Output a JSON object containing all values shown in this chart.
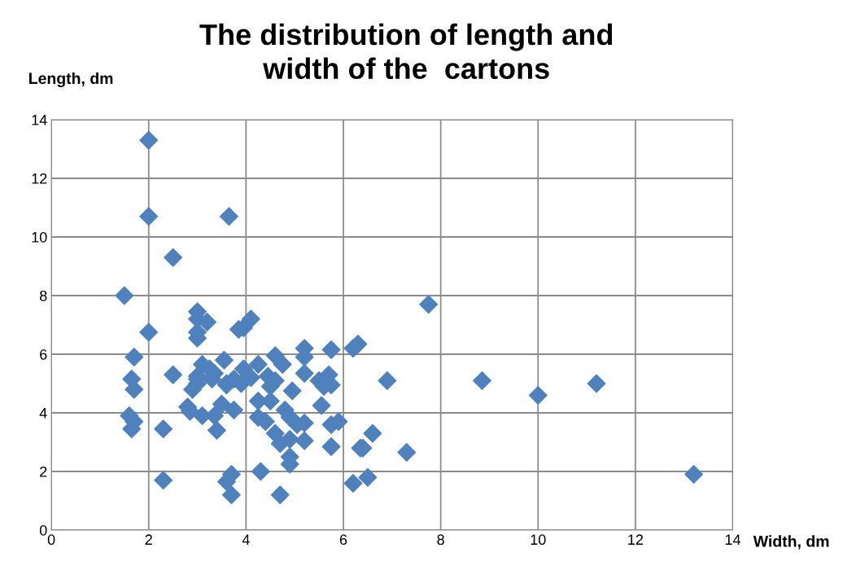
{
  "chart_data": {
    "type": "scatter",
    "title": "The distribution of length and\nwidth of the  cartons",
    "xlabel": "Width, dm",
    "ylabel": "Length, dm",
    "marker": "diamond",
    "grid": true,
    "legend": false,
    "xlim": [
      0,
      14
    ],
    "ylim": [
      0,
      14
    ],
    "xticks": [
      0,
      2,
      4,
      6,
      8,
      10,
      12,
      14
    ],
    "yticks": [
      0,
      2,
      4,
      6,
      8,
      10,
      12,
      14
    ],
    "series": [
      {
        "color": "#4f81bd",
        "x": [
          2.0,
          2.0,
          2.5,
          1.5,
          3.65,
          2.0,
          7.75,
          1.7,
          1.65,
          1.7,
          1.6,
          1.7,
          1.65,
          2.3,
          2.3,
          2.5,
          3.0,
          3.0,
          3.2,
          3.0,
          3.0,
          3.0,
          3.0,
          2.9,
          2.8,
          2.85,
          3.1,
          3.1,
          3.25,
          3.35,
          3.3,
          3.55,
          3.6,
          3.5,
          3.4,
          3.35,
          3.75,
          3.6,
          3.7,
          3.7,
          4.1,
          3.95,
          4.6,
          4.75,
          4.25,
          3.95,
          3.9,
          4.1,
          4.45,
          4.6,
          4.5,
          5.2,
          5.2,
          5.75,
          6.2,
          6.3,
          5.2,
          5.5,
          5.7,
          5.75,
          5.6,
          4.95,
          4.25,
          4.5,
          5.55,
          4.25,
          4.4,
          4.8,
          4.9,
          5.05,
          5.2,
          4.6,
          4.7,
          4.9,
          5.2,
          4.9,
          4.9,
          5.75,
          5.9,
          5.75,
          6.35,
          4.3,
          4.7,
          6.2,
          6.9,
          8.85,
          6.6,
          6.4,
          7.3,
          6.5,
          10.0,
          11.2,
          13.2,
          3.75,
          3.6,
          3.0,
          3.85
        ],
        "values": [
          13.3,
          10.7,
          9.3,
          8.0,
          10.7,
          6.75,
          7.7,
          5.9,
          5.15,
          4.8,
          3.9,
          3.7,
          3.45,
          3.45,
          1.7,
          5.3,
          7.45,
          7.2,
          7.1,
          6.75,
          6.55,
          5.25,
          5.0,
          4.8,
          4.2,
          4.05,
          3.9,
          5.65,
          5.5,
          5.35,
          5.15,
          5.8,
          5.0,
          4.3,
          3.4,
          3.9,
          4.1,
          1.65,
          1.9,
          1.2,
          7.2,
          6.9,
          5.95,
          5.65,
          5.65,
          5.5,
          5.0,
          5.2,
          5.25,
          5.1,
          4.9,
          6.2,
          5.9,
          6.15,
          6.2,
          6.35,
          5.35,
          5.1,
          5.3,
          4.95,
          4.9,
          4.75,
          4.4,
          4.4,
          4.25,
          3.85,
          3.7,
          4.1,
          3.85,
          3.6,
          3.65,
          3.3,
          2.95,
          3.1,
          3.05,
          2.5,
          2.25,
          3.6,
          3.7,
          2.85,
          2.8,
          2.0,
          1.2,
          1.6,
          5.1,
          5.1,
          3.3,
          2.8,
          2.65,
          1.8,
          4.6,
          5.0,
          1.9,
          5.15,
          4.95,
          5.15,
          6.85
        ]
      }
    ]
  }
}
